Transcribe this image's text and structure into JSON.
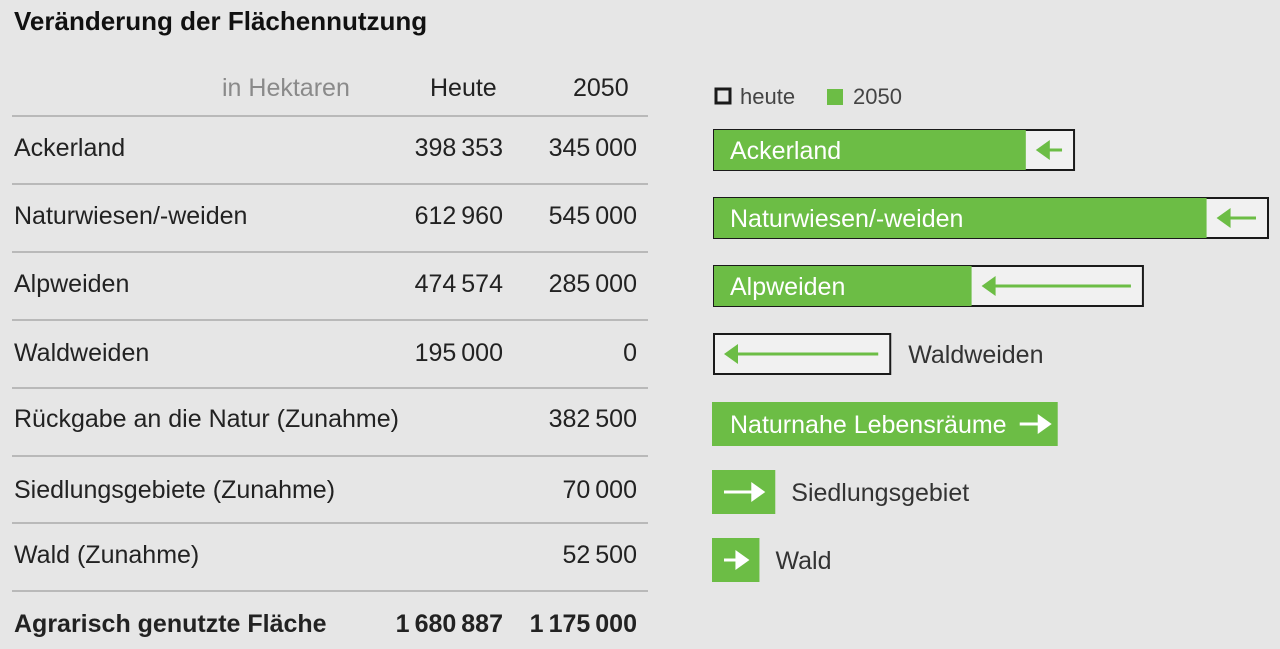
{
  "title": "Veränderung der Flächennutzung",
  "table": {
    "unit_header": "in Hektaren",
    "col_today": "Heute",
    "col_2050": "2050",
    "rows": [
      {
        "label": "Ackerland",
        "today": "398353",
        "y2050": "345000"
      },
      {
        "label": "Naturwiesen/-weiden",
        "today": "612960",
        "y2050": "545000"
      },
      {
        "label": "Alpweiden",
        "today": "474574",
        "y2050": "285000"
      },
      {
        "label": "Waldweiden",
        "today": "195000",
        "y2050": "0"
      },
      {
        "label": "Rückgabe an die Natur (Zunahme)",
        "today": "",
        "y2050": "382500"
      },
      {
        "label": "Siedlungsgebiete (Zunahme)",
        "today": "",
        "y2050": "70000"
      },
      {
        "label": "Wald (Zunahme)",
        "today": "",
        "y2050": "52500"
      }
    ],
    "total": {
      "label": "Agrarisch genutzte Fläche",
      "today": "1680887",
      "y2050": "1175000"
    }
  },
  "legend": {
    "today": "heute",
    "y2050": "2050"
  },
  "colors": {
    "green": "#6cbd45",
    "outline": "#1a1a1a",
    "background": "#e6e6e6"
  },
  "chart_data": {
    "type": "bar",
    "orientation": "horizontal",
    "unit": "Hektaren",
    "legend_placement": "top",
    "series": [
      {
        "name": "heute",
        "style": "outline"
      },
      {
        "name": "2050",
        "style": "filled-green"
      }
    ],
    "bars": [
      {
        "label": "Ackerland",
        "label_inside": true,
        "heute": 398353,
        "y2050": 345000,
        "arrow": "left"
      },
      {
        "label": "Naturwiesen/-weiden",
        "label_inside": true,
        "heute": 612960,
        "y2050": 545000,
        "arrow": "left"
      },
      {
        "label": "Alpweiden",
        "label_inside": true,
        "heute": 474574,
        "y2050": 285000,
        "arrow": "left"
      },
      {
        "label": "Waldweiden",
        "label_inside": false,
        "heute": 195000,
        "y2050": 0,
        "arrow": "left"
      },
      {
        "label": "Naturnahe Lebensräume",
        "label_inside": true,
        "heute": 0,
        "y2050": 382500,
        "arrow": "right"
      },
      {
        "label": "Siedlungsgebiet",
        "label_inside": false,
        "heute": 0,
        "y2050": 70000,
        "arrow": "right"
      },
      {
        "label": "Wald",
        "label_inside": false,
        "heute": 0,
        "y2050": 52500,
        "arrow": "right"
      }
    ]
  }
}
